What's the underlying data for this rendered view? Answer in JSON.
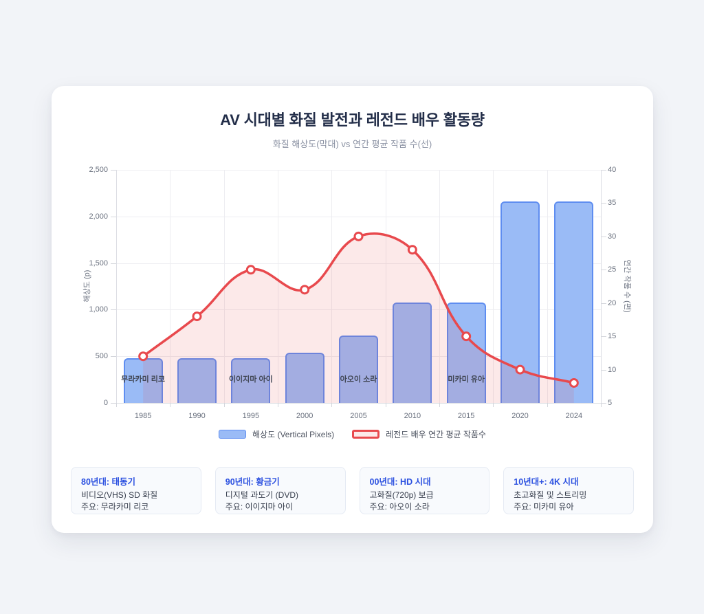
{
  "title": "AV 시대별 화질 발전과 레전드 배우 활동량",
  "subtitle": "화질 해상도(막대) vs 연간 평균 작품 수(선)",
  "colors": {
    "bar_fill": "#9abbf6",
    "bar_border": "#5e8df0",
    "line": "#e8494d",
    "line_fill": "rgba(232,73,77,0.12)",
    "marker_fill": "#ffffff",
    "accent": "#2b50e0"
  },
  "chart_data": {
    "type": "bar+line",
    "categories": [
      "1985",
      "1990",
      "1995",
      "2000",
      "2005",
      "2010",
      "2015",
      "2020",
      "2024"
    ],
    "series": [
      {
        "name": "해상도 (Vertical Pixels)",
        "type": "bar",
        "axis": "left",
        "values": [
          480,
          480,
          480,
          540,
          720,
          1080,
          1080,
          2160,
          2160
        ]
      },
      {
        "name": "레전드 배우 연간 평균 작품수",
        "type": "line",
        "axis": "right",
        "values": [
          12,
          18,
          25,
          22,
          30,
          28,
          15,
          10,
          8
        ]
      }
    ],
    "title": "AV 시대별 화질 발전과 레전드 배우 활동량",
    "subtitle": "화질 해상도(막대) vs 연간 평균 작품 수(선)",
    "ylabel_left": "해상도 (p)",
    "ylabel_right": "연간 작품 수 (편)",
    "ylim_left": [
      0,
      2500
    ],
    "ylim_right": [
      5,
      40
    ],
    "yticks_left": [
      {
        "value": 0,
        "label": "0"
      },
      {
        "value": 500,
        "label": "500"
      },
      {
        "value": 1000,
        "label": "1,000"
      },
      {
        "value": 1500,
        "label": "1,500"
      },
      {
        "value": 2000,
        "label": "2,000"
      },
      {
        "value": 2500,
        "label": "2,500"
      }
    ],
    "yticks_right": [
      {
        "value": 5,
        "label": "5"
      },
      {
        "value": 10,
        "label": "10"
      },
      {
        "value": 15,
        "label": "15"
      },
      {
        "value": 20,
        "label": "20"
      },
      {
        "value": 25,
        "label": "25"
      },
      {
        "value": 30,
        "label": "30"
      },
      {
        "value": 35,
        "label": "35"
      },
      {
        "value": 40,
        "label": "40"
      }
    ],
    "grid": true,
    "legend_position": "bottom",
    "legend": [
      {
        "label": "해상도 (Vertical Pixels)",
        "type": "bar"
      },
      {
        "label": "레전드 배우 연간 평균 작품수",
        "type": "line"
      }
    ],
    "bar_labels": [
      {
        "index": 0,
        "text": "무라카미 리코"
      },
      {
        "index": 2,
        "text": "이이지마 아이"
      },
      {
        "index": 4,
        "text": "아오이 소라"
      },
      {
        "index": 6,
        "text": "미카미 유아"
      }
    ]
  },
  "era_cards": [
    {
      "title": "80년대: 태동기",
      "line1": "비디오(VHS) SD 화질",
      "line2": "주요: 무라카미 리코"
    },
    {
      "title": "90년대: 황금기",
      "line1": "디지털 과도기 (DVD)",
      "line2": "주요: 이이지마 아이"
    },
    {
      "title": "00년대: HD 시대",
      "line1": "고화질(720p) 보급",
      "line2": "주요: 아오이 소라"
    },
    {
      "title": "10년대+: 4K 시대",
      "line1": "초고화질 및 스트리밍",
      "line2": "주요: 미카미 유아"
    }
  ]
}
